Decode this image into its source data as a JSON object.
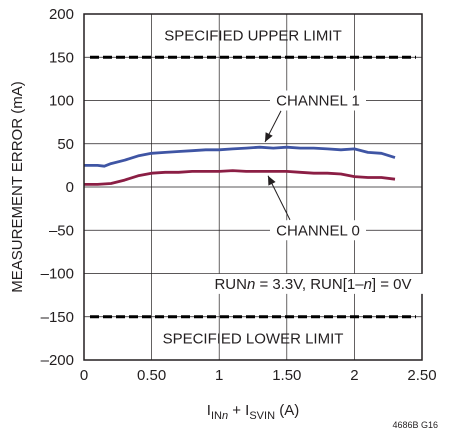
{
  "chart_data": {
    "type": "line",
    "xlabel": "IINn + ISVIN (A)",
    "xlabel_parts": {
      "main1": "I",
      "sub1": "IN",
      "sub1_italic": "n",
      "mid": " + I",
      "sub2": "SVIN",
      "end": " (A)"
    },
    "ylabel": "MEASUREMENT ERROR (mA)",
    "xlim": [
      0,
      2.5
    ],
    "ylim": [
      -200,
      200
    ],
    "x_ticks": [
      {
        "value": 0,
        "label": "0"
      },
      {
        "value": 0.5,
        "label": "0.50"
      },
      {
        "value": 1,
        "label": "1"
      },
      {
        "value": 1.5,
        "label": "1.50"
      },
      {
        "value": 2,
        "label": "2"
      },
      {
        "value": 2.5,
        "label": "2.50"
      }
    ],
    "y_ticks": [
      {
        "value": 200,
        "label": "200"
      },
      {
        "value": 150,
        "label": "150"
      },
      {
        "value": 100,
        "label": "100"
      },
      {
        "value": 50,
        "label": "50"
      },
      {
        "value": 0,
        "label": "0"
      },
      {
        "value": -50,
        "label": "–50"
      },
      {
        "value": -100,
        "label": "–100"
      },
      {
        "value": -150,
        "label": "–150"
      },
      {
        "value": -200,
        "label": "–200"
      }
    ],
    "grid": true,
    "limits": [
      {
        "name": "SPECIFIED UPPER LIMIT",
        "value": 150
      },
      {
        "name": "SPECIFIED LOWER LIMIT",
        "value": -150
      }
    ],
    "series": [
      {
        "name": "CHANNEL 1",
        "color": "#3f55a4",
        "x": [
          0,
          0.1,
          0.15,
          0.2,
          0.3,
          0.4,
          0.5,
          0.6,
          0.7,
          0.8,
          0.9,
          1.0,
          1.1,
          1.2,
          1.3,
          1.4,
          1.5,
          1.6,
          1.7,
          1.8,
          1.9,
          2.0,
          2.1,
          2.2,
          2.3
        ],
        "y": [
          25,
          25,
          24,
          27,
          31,
          36,
          39,
          40,
          41,
          42,
          43,
          43,
          44,
          45,
          46,
          45,
          46,
          45,
          45,
          44,
          43,
          44,
          40,
          39,
          34
        ]
      },
      {
        "name": "CHANNEL 0",
        "color": "#8b1e44",
        "x": [
          0,
          0.1,
          0.2,
          0.3,
          0.4,
          0.5,
          0.6,
          0.7,
          0.8,
          0.9,
          1.0,
          1.1,
          1.2,
          1.3,
          1.4,
          1.5,
          1.6,
          1.7,
          1.8,
          1.9,
          2.0,
          2.1,
          2.2,
          2.3
        ],
        "y": [
          3,
          3,
          4,
          8,
          13,
          16,
          17,
          17,
          18,
          18,
          18,
          19,
          18,
          18,
          18,
          18,
          17,
          16,
          16,
          15,
          12,
          11,
          11,
          9
        ]
      }
    ],
    "annotations": {
      "upper_limit": "SPECIFIED UPPER LIMIT",
      "lower_limit": "SPECIFIED LOWER LIMIT",
      "channel1": "CHANNEL 1",
      "channel0": "CHANNEL 0",
      "condition_parts": {
        "a": "RUN",
        "b": "n",
        "c": " = 3.3V, RUN[1–",
        "d": "n",
        "e": "] = 0V"
      }
    },
    "figure_id": "4686B G16"
  }
}
